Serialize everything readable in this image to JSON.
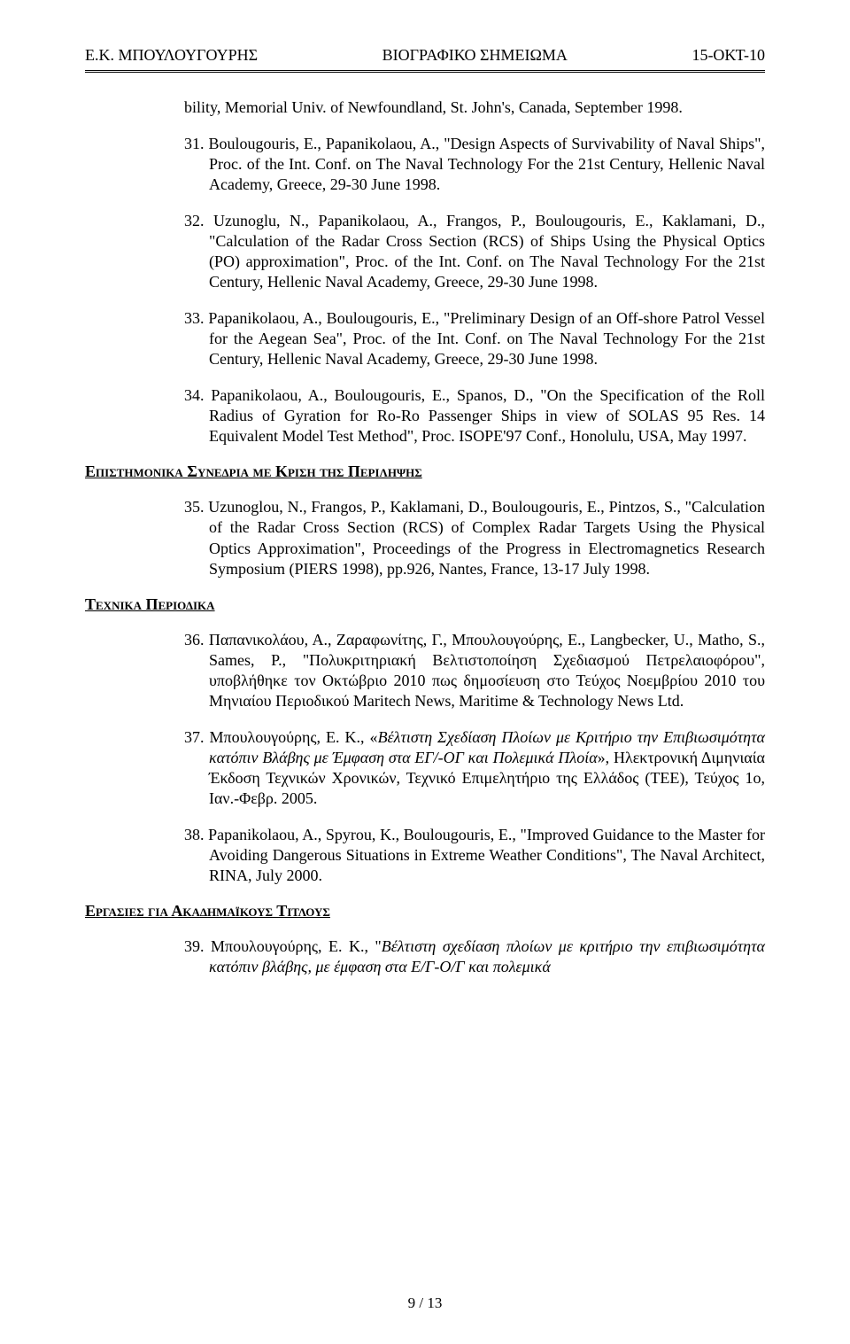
{
  "header": {
    "left": "Ε.Κ. ΜΠΟΥΛΟΥΓΟΥΡΗΣ",
    "center": "ΒΙΟΓΡΑΦΙΚΟ ΣΗΜΕΙΩΜΑ",
    "right": "15-ΟΚΤ-10"
  },
  "lead": "bility, Memorial Univ. of Newfoundland, St. John's, Canada, September 1998.",
  "entries": {
    "e31": "31. Boulougouris, E., Papanikolaou, A., \"Design Aspects of Survivability of Naval Ships\", Proc. of the Int. Conf. on The Naval Technology For the 21st Century, Hellenic Naval Academy, Greece, 29-30 June 1998.",
    "e32": "32. Uzunoglu, N., Papanikolaou, A., Frangos, P., Boulougouris, E., Kaklamani, D., \"Calculation of the Radar Cross Section (RCS) of Ships Using the Physical Optics (PO) approximation\", Proc. of the Int. Conf. on The Naval Technology For the 21st Century, Hellenic Naval Academy, Greece, 29-30 June 1998.",
    "e33": "33. Papanikolaou, A., Boulougouris, E., \"Preliminary Design of an Off-shore Patrol Vessel for the Aegean Sea\", Proc. of the Int. Conf. on The Naval Technology For the 21st Century, Hellenic Naval Academy, Greece, 29-30 June 1998.",
    "e34": "34. Papanikolaou, A., Boulougouris, E., Spanos, D., \"On the Specification of the Roll Radius of Gyration for Ro-Ro Passenger Ships in view of SOLAS 95 Res. 14 Equivalent Model Test Method\", Proc. ISOPE'97 Conf., Honolulu, USA, May 1997.",
    "e35": "35. Uzunoglou, N., Frangos, P., Kaklamani, D., Boulougouris, E., Pintzos, S., \"Calculation of the Radar Cross Section (RCS) of Complex Radar Targets Using the Physical Optics Approximation\", Proceedings of the Progress in Electromagnetics Research Symposium (PIERS 1998), pp.926, Nantes, France, 13-17 July 1998.",
    "e36": "36. Παπανικολάου, Α., Ζαραφωνίτης, Γ., Μπουλουγούρης, Ε., Langbecker, U., Matho, S., Sames, P., \"Πολυκριτηριακή Βελτιστοποίηση Σχεδιασμού Πετρελαιοφόρου\", υποβλήθηκε τον Οκτώβριο 2010 πως δημοσίευση στο Τεύχος Νοεμβρίου 2010 του Μηνιαίου Περιοδικού Maritech News, Maritime & Technology News Ltd.",
    "e37_pre": "37. Μπουλουγούρης, Ε. Κ., «",
    "e37_it": "Βέλτιστη Σχεδίαση Πλοίων με Κριτήριο την Επιβιωσιμότητα κατόπιν Βλάβης με Έμφαση στα ΕΓ/-ΟΓ και Πολεμικά Πλοία",
    "e37_post": "», Ηλεκτρονική Διμηνιαία Έκδοση Τεχνικών Χρονικών, Τεχνικό Επιμελητήριο της Ελλάδος (ΤΕΕ), Τεύχος 1ο, Ιαν.-Φεβρ. 2005.",
    "e38": "38. Papanikolaou, A., Spyrou, K., Boulougouris, E., \"Improved Guidance to the Master for Avoiding Dangerous Situations in Extreme Weather Conditions\", The Naval Architect, RINA, July 2000.",
    "e39_pre": "39. Μπουλουγούρης, Ε. Κ., \"",
    "e39_it": "Βέλτιστη σχεδίαση πλοίων με κριτήριο την επιβιωσιμότητα κατόπιν βλάβης, με έμφαση στα Ε/Γ-Ο/Γ και πολεμικά"
  },
  "sections": {
    "s1": "Επιστημονικα Συνεδρια με Κριση της Περιληψης",
    "s2": "Τεχνικα Περιοδικα",
    "s3": "Εργασιες για Ακαδημαϊκους Τιτλους"
  },
  "footer": "9 / 13"
}
